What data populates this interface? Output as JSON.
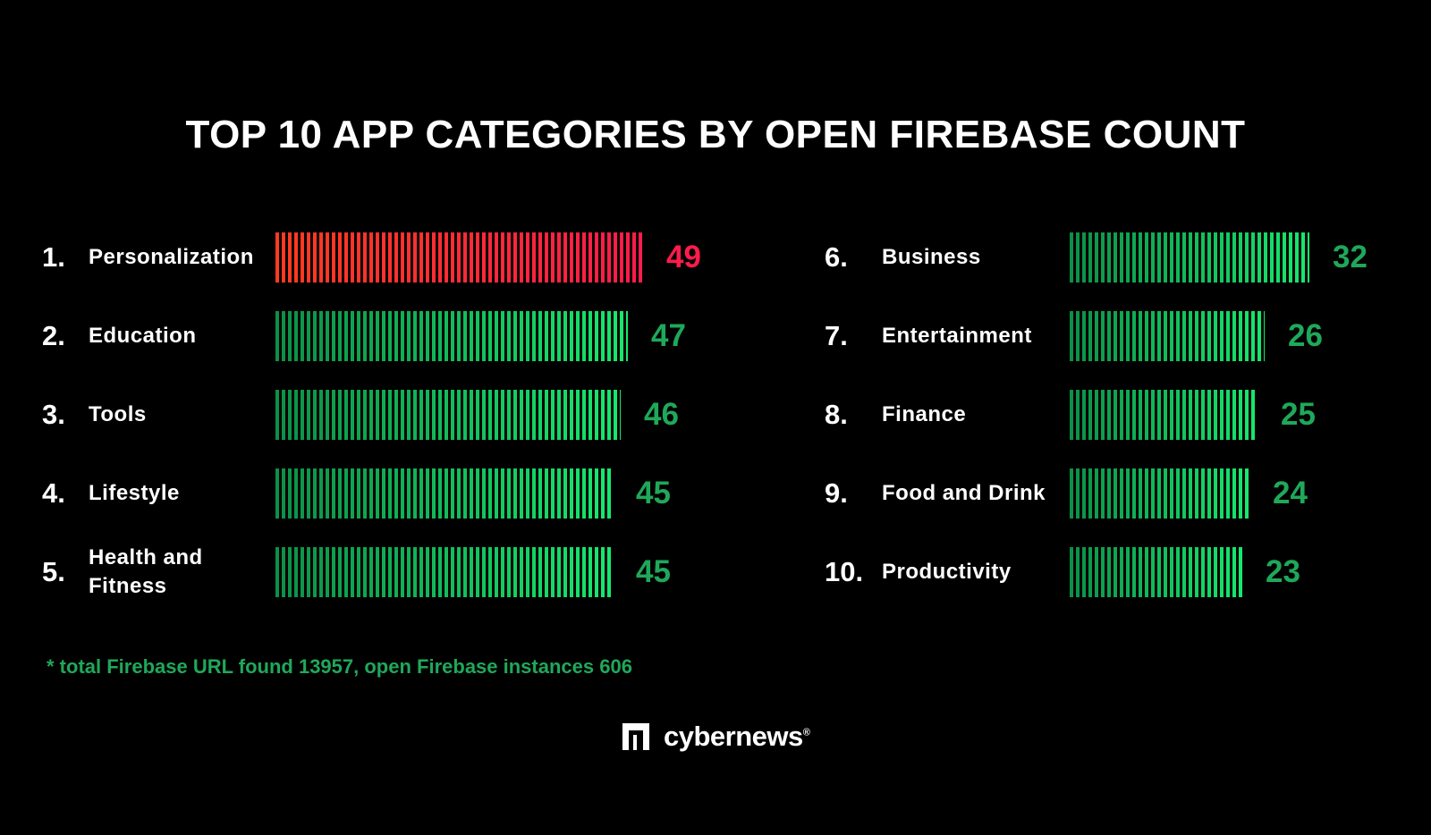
{
  "chart_data": {
    "type": "bar",
    "title": "TOP 10 APP CATEGORIES BY OPEN FIREBASE COUNT",
    "xlabel": "",
    "ylabel": "",
    "ranks": [
      "1.",
      "2.",
      "3.",
      "4.",
      "5.",
      "6.",
      "7.",
      "8.",
      "9.",
      "10."
    ],
    "categories": [
      "Personalization",
      "Education",
      "Tools",
      "Lifestyle",
      "Health and Fitness",
      "Business",
      "Entertainment",
      "Finance",
      "Food and Drink",
      "Productivity"
    ],
    "values": [
      49,
      47,
      46,
      45,
      45,
      32,
      26,
      25,
      24,
      23
    ],
    "value_labels": [
      "49",
      "47",
      "46",
      "45",
      "45",
      "32",
      "26",
      "25",
      "24",
      "23"
    ],
    "highlight_index": 0
  },
  "colors": {
    "background": "#000000",
    "text": "#ffffff",
    "green_value": "#1fa85a",
    "highlight_value": "#ff1b4b",
    "green_bar_start": "#0c8f47",
    "green_bar_end": "#17e86e",
    "highlight_bar_start": "#ff3b1f",
    "highlight_bar_end": "#ff1b4b"
  },
  "footnote": {
    "prefix": "* total Firebase URL found ",
    "total_urls": "13957",
    "middle": ", open Firebase instances ",
    "open_instances": "606"
  },
  "brand": {
    "name": "cybernews",
    "mark": "®",
    "icon": "cybernews-logo-icon"
  }
}
